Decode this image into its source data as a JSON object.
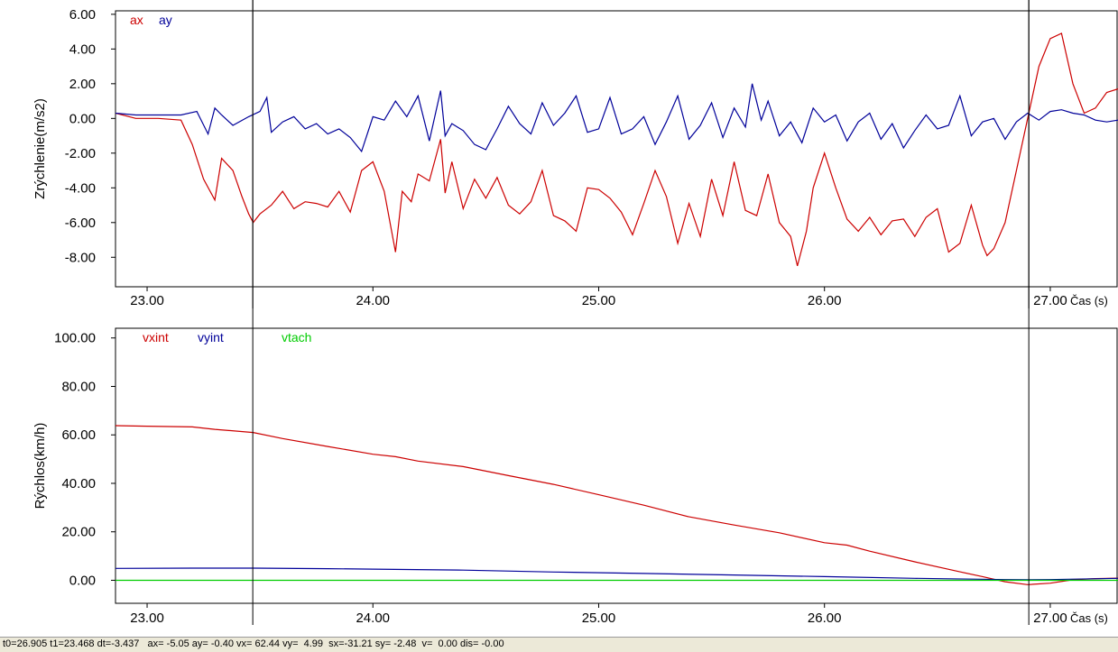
{
  "chart_data": [
    {
      "type": "line",
      "ylabel": "Zrýchlenie(m/s2)",
      "xlabel": "Čas (s)",
      "xlim": [
        22.86,
        27.3
      ],
      "ylim": [
        -9.7,
        6.2
      ],
      "x_ticks": [
        "23.00",
        "24.00",
        "25.00",
        "26.00",
        "27.00"
      ],
      "y_ticks": [
        "6.00",
        "4.00",
        "2.00",
        "0.00",
        "-2.00",
        "-4.00",
        "-6.00",
        "-8.00"
      ],
      "legend_position": "top-left",
      "cursors": [
        23.468,
        26.905
      ],
      "grid": false,
      "series": [
        {
          "name": "ax",
          "color": "#cc0000",
          "x": [
            22.86,
            22.95,
            23.05,
            23.15,
            23.2,
            23.25,
            23.3,
            23.33,
            23.38,
            23.42,
            23.45,
            23.47,
            23.5,
            23.55,
            23.6,
            23.65,
            23.7,
            23.75,
            23.8,
            23.85,
            23.9,
            23.95,
            24.0,
            24.05,
            24.1,
            24.13,
            24.17,
            24.2,
            24.25,
            24.3,
            24.32,
            24.35,
            24.4,
            24.45,
            24.5,
            24.55,
            24.6,
            24.65,
            24.7,
            24.75,
            24.8,
            24.85,
            24.9,
            24.95,
            25.0,
            25.05,
            25.1,
            25.15,
            25.2,
            25.25,
            25.3,
            25.35,
            25.4,
            25.45,
            25.5,
            25.55,
            25.6,
            25.65,
            25.7,
            25.75,
            25.8,
            25.85,
            25.88,
            25.92,
            25.95,
            26.0,
            26.05,
            26.1,
            26.15,
            26.2,
            26.25,
            26.3,
            26.35,
            26.4,
            26.45,
            26.5,
            26.55,
            26.6,
            26.65,
            26.7,
            26.72,
            26.75,
            26.8,
            26.85,
            26.9,
            26.95,
            27.0,
            27.05,
            27.1,
            27.15,
            27.2,
            27.25,
            27.3
          ],
          "y": [
            0.3,
            0.0,
            0.0,
            -0.1,
            -1.5,
            -3.5,
            -4.7,
            -2.3,
            -3.0,
            -4.5,
            -5.5,
            -6.0,
            -5.5,
            -5.0,
            -4.2,
            -5.2,
            -4.8,
            -4.9,
            -5.1,
            -4.2,
            -5.4,
            -3.0,
            -2.5,
            -4.2,
            -7.7,
            -4.2,
            -4.8,
            -3.2,
            -3.6,
            -1.2,
            -4.3,
            -2.5,
            -5.2,
            -3.5,
            -4.6,
            -3.4,
            -5.0,
            -5.5,
            -4.8,
            -3.0,
            -5.6,
            -5.9,
            -6.5,
            -4.0,
            -4.1,
            -4.6,
            -5.4,
            -6.7,
            -4.9,
            -3.0,
            -4.5,
            -7.2,
            -4.9,
            -6.8,
            -3.5,
            -5.6,
            -2.5,
            -5.3,
            -5.6,
            -3.2,
            -6.0,
            -6.8,
            -8.5,
            -6.5,
            -4.0,
            -2.0,
            -4.0,
            -5.8,
            -6.5,
            -5.7,
            -6.7,
            -5.9,
            -5.8,
            -6.8,
            -5.7,
            -5.2,
            -7.7,
            -7.2,
            -5.0,
            -7.3,
            -7.9,
            -7.5,
            -6.0,
            -3.0,
            0.0,
            3.0,
            4.6,
            4.9,
            2.0,
            0.3,
            0.6,
            1.5,
            1.7
          ]
        },
        {
          "name": "ay",
          "color": "#000099",
          "x": [
            22.86,
            22.95,
            23.05,
            23.15,
            23.22,
            23.27,
            23.3,
            23.33,
            23.38,
            23.45,
            23.5,
            23.53,
            23.55,
            23.6,
            23.65,
            23.7,
            23.75,
            23.8,
            23.85,
            23.9,
            23.95,
            24.0,
            24.05,
            24.1,
            24.15,
            24.2,
            24.25,
            24.3,
            24.32,
            24.35,
            24.4,
            24.45,
            24.5,
            24.55,
            24.6,
            24.65,
            24.7,
            24.75,
            24.8,
            24.85,
            24.9,
            24.95,
            25.0,
            25.05,
            25.1,
            25.15,
            25.2,
            25.25,
            25.3,
            25.35,
            25.4,
            25.45,
            25.5,
            25.55,
            25.6,
            25.65,
            25.68,
            25.72,
            25.75,
            25.8,
            25.85,
            25.9,
            25.95,
            26.0,
            26.05,
            26.1,
            26.15,
            26.2,
            26.25,
            26.3,
            26.35,
            26.4,
            26.45,
            26.5,
            26.55,
            26.6,
            26.65,
            26.7,
            26.75,
            26.8,
            26.85,
            26.9,
            26.95,
            27.0,
            27.05,
            27.1,
            27.15,
            27.2,
            27.25,
            27.3
          ],
          "y": [
            0.3,
            0.2,
            0.2,
            0.2,
            0.4,
            -0.9,
            0.6,
            0.2,
            -0.4,
            0.1,
            0.4,
            1.2,
            -0.8,
            -0.2,
            0.1,
            -0.6,
            -0.3,
            -0.9,
            -0.6,
            -1.1,
            -1.9,
            0.1,
            -0.1,
            1.0,
            0.1,
            1.3,
            -1.3,
            1.6,
            -1.0,
            -0.3,
            -0.7,
            -1.5,
            -1.8,
            -0.6,
            0.7,
            -0.3,
            -0.9,
            0.9,
            -0.4,
            0.3,
            1.3,
            -0.8,
            -0.6,
            1.2,
            -0.9,
            -0.6,
            0.1,
            -1.5,
            -0.2,
            1.3,
            -1.2,
            -0.4,
            0.9,
            -1.1,
            0.6,
            -0.5,
            2.0,
            -0.1,
            1.0,
            -1.0,
            -0.2,
            -1.4,
            0.6,
            -0.2,
            0.2,
            -1.3,
            -0.2,
            0.3,
            -1.2,
            -0.3,
            -1.7,
            -0.7,
            0.2,
            -0.6,
            -0.4,
            1.3,
            -1.0,
            -0.2,
            0.0,
            -1.2,
            -0.2,
            0.3,
            -0.1,
            0.4,
            0.5,
            0.3,
            0.2,
            -0.1,
            -0.2,
            -0.1
          ]
        }
      ]
    },
    {
      "type": "line",
      "ylabel": "Rýchlos(km/h)",
      "xlabel": "Čas (s)",
      "xlim": [
        22.86,
        27.3
      ],
      "ylim": [
        -9.5,
        104
      ],
      "x_ticks": [
        "23.00",
        "24.00",
        "25.00",
        "26.00",
        "27.00"
      ],
      "y_ticks": [
        "100.00",
        "80.00",
        "60.00",
        "40.00",
        "20.00",
        "0.00"
      ],
      "legend_position": "top-left",
      "cursors": [
        23.468,
        26.905
      ],
      "grid": false,
      "series": [
        {
          "name": "vxint",
          "color": "#cc0000",
          "x": [
            22.86,
            23.0,
            23.2,
            23.3,
            23.47,
            23.6,
            23.8,
            24.0,
            24.1,
            24.2,
            24.4,
            24.6,
            24.8,
            25.0,
            25.2,
            25.4,
            25.6,
            25.8,
            26.0,
            26.1,
            26.2,
            26.4,
            26.6,
            26.7,
            26.8,
            26.9,
            27.0,
            27.1,
            27.2,
            27.3
          ],
          "y": [
            63.8,
            63.6,
            63.3,
            62.3,
            61.0,
            58.5,
            55.2,
            52.0,
            51.0,
            49.2,
            46.9,
            43.2,
            39.6,
            35.3,
            31.0,
            26.2,
            22.8,
            19.6,
            15.5,
            14.5,
            12.0,
            7.6,
            3.5,
            1.5,
            -0.6,
            -1.8,
            -1.2,
            0.2,
            0.7,
            0.9
          ]
        },
        {
          "name": "vyint",
          "color": "#000099",
          "x": [
            22.86,
            23.2,
            23.47,
            23.8,
            24.0,
            24.4,
            24.8,
            25.2,
            25.6,
            26.0,
            26.4,
            26.8,
            26.9,
            27.0,
            27.3
          ],
          "y": [
            4.9,
            5.0,
            5.0,
            4.8,
            4.6,
            4.2,
            3.4,
            2.8,
            2.2,
            1.5,
            0.8,
            0.3,
            0.2,
            0.3,
            0.8
          ]
        },
        {
          "name": "vtach",
          "color": "#00cc00",
          "x": [
            22.86,
            27.3
          ],
          "y": [
            0.0,
            0.0
          ]
        }
      ]
    }
  ],
  "status_text": "t0=26.905 t1=23.468 dt=-3.437   ax= -5.05 ay= -0.40 vx= 62.44 vy=  4.99  sx=-31.21 sy= -2.48  v=  0.00 dis= -0.00"
}
